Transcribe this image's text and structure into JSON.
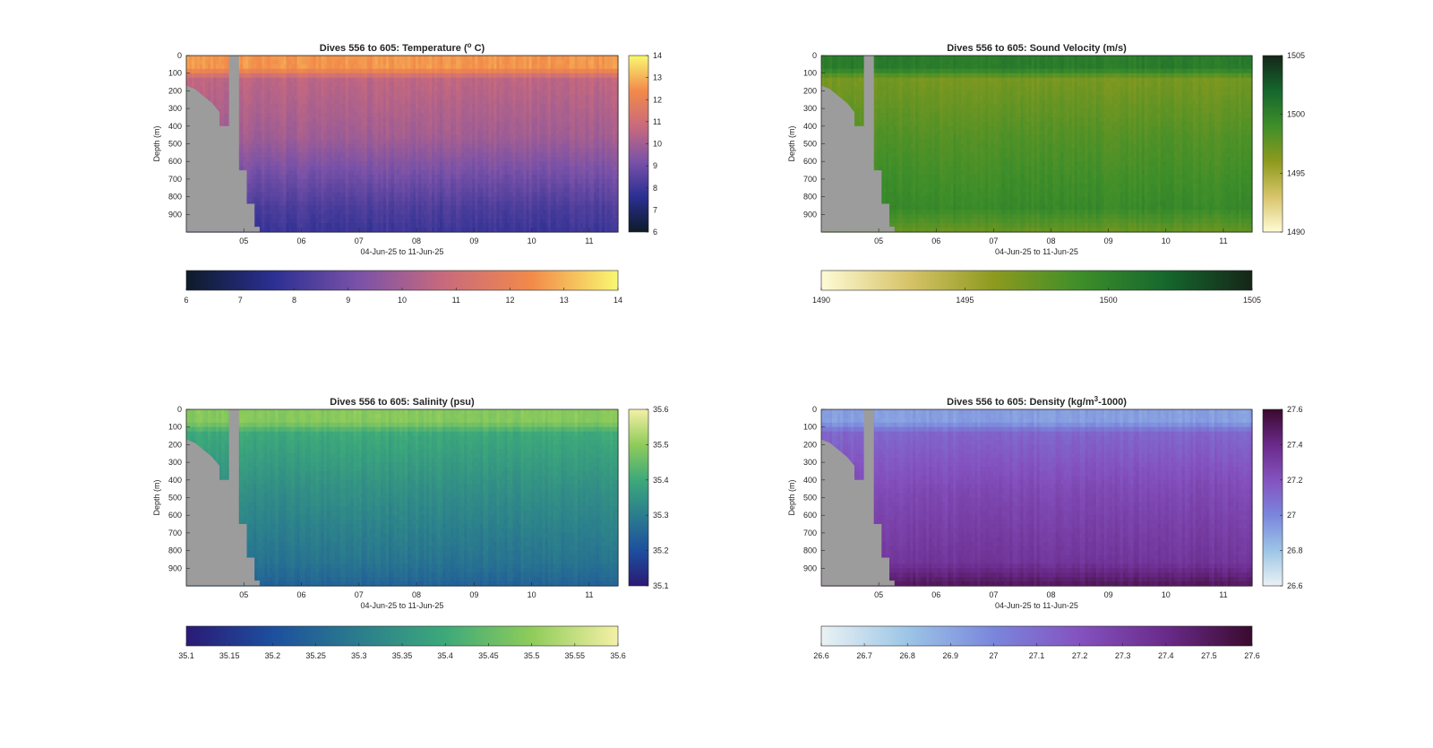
{
  "figure": {
    "background": "#ffffff",
    "land_color": "#9c9c9c"
  },
  "chart_data": [
    {
      "type": "heatmap",
      "title": "Dives 556 to 605: Temperature (",
      "title_sup": "o",
      "title_end": " C)",
      "xlabel": "04-Jun-25 to 11-Jun-25",
      "ylabel": "Depth (m)",
      "x_ticks": [
        "05",
        "06",
        "07",
        "08",
        "09",
        "10",
        "11"
      ],
      "y_ticks": [
        0,
        100,
        200,
        300,
        400,
        500,
        600,
        700,
        800,
        900
      ],
      "ylim": [
        0,
        1000
      ],
      "colorscale": [
        "#0d1b29",
        "#2b2f92",
        "#7a52a8",
        "#c96a7c",
        "#f28a4a",
        "#f9f871"
      ],
      "range": [
        6,
        14
      ],
      "side_colorbar_ticks": [
        6,
        7,
        8,
        9,
        10,
        11,
        12,
        13,
        14
      ],
      "bottom_colorbar_ticks": [
        "6",
        "7",
        "8",
        "9",
        "10",
        "11",
        "12",
        "13",
        "14"
      ],
      "profile": {
        "surface": 12.6,
        "upper": 10.6,
        "mid": 10.0,
        "deep": 8.3,
        "bottom": 7.9
      }
    },
    {
      "type": "heatmap",
      "title": "Dives 556 to 605: Sound Velocity (m/s)",
      "title_sup": "",
      "title_end": "",
      "xlabel": "04-Jun-25 to 11-Jun-25",
      "ylabel": "Depth (m)",
      "x_ticks": [
        "05",
        "06",
        "07",
        "08",
        "09",
        "10",
        "11"
      ],
      "y_ticks": [
        0,
        100,
        200,
        300,
        400,
        500,
        600,
        700,
        800,
        900
      ],
      "ylim": [
        0,
        1000
      ],
      "colorscale": [
        "#fefbd6",
        "#d8c46a",
        "#8d9a1e",
        "#3e8e2a",
        "#15672d",
        "#152618"
      ],
      "range": [
        1490,
        1505
      ],
      "side_colorbar_ticks": [
        1490,
        1495,
        1500,
        1505
      ],
      "bottom_colorbar_ticks": [
        "1490",
        "1495",
        "1500",
        "1505"
      ],
      "profile": {
        "surface": 1500.4,
        "upper": 1496.8,
        "mid": 1498.2,
        "deep": 1499.4,
        "bottom": 1497.2
      }
    },
    {
      "type": "heatmap",
      "title": "Dives 556 to 605: Salinity (psu)",
      "title_sup": "",
      "title_end": "",
      "xlabel": "04-Jun-25 to 11-Jun-25",
      "ylabel": "Depth (m)",
      "x_ticks": [
        "05",
        "06",
        "07",
        "08",
        "09",
        "10",
        "11"
      ],
      "y_ticks": [
        0,
        100,
        200,
        300,
        400,
        500,
        600,
        700,
        800,
        900
      ],
      "ylim": [
        0,
        1000
      ],
      "colorscale": [
        "#2a1a75",
        "#1d4f9e",
        "#2b7d8d",
        "#3da97a",
        "#8fcc5a",
        "#f5f0a6"
      ],
      "range": [
        35.1,
        35.6
      ],
      "side_colorbar_ticks": [
        35.1,
        35.2,
        35.3,
        35.4,
        35.5,
        35.6
      ],
      "bottom_colorbar_ticks": [
        "35.1",
        "35.15",
        "35.2",
        "35.25",
        "35.3",
        "35.35",
        "35.4",
        "35.45",
        "35.5",
        "35.55",
        "35.6"
      ],
      "profile": {
        "surface": 35.49,
        "upper": 35.4,
        "mid": 35.34,
        "deep": 35.28,
        "bottom": 35.24
      }
    },
    {
      "type": "heatmap",
      "title": "Dives 556 to 605: Density (kg/m",
      "title_sup": "3",
      "title_end": "-1000)",
      "xlabel": "04-Jun-25 to 11-Jun-25",
      "ylabel": "Depth (m)",
      "x_ticks": [
        "05",
        "06",
        "07",
        "08",
        "09",
        "10",
        "11"
      ],
      "y_ticks": [
        0,
        100,
        200,
        300,
        400,
        500,
        600,
        700,
        800,
        900
      ],
      "ylim": [
        0,
        1000
      ],
      "colorscale": [
        "#eaf2f4",
        "#9cc5e6",
        "#7a86dc",
        "#8452bf",
        "#6a2a8a",
        "#3a0a2e"
      ],
      "range": [
        26.6,
        27.6
      ],
      "side_colorbar_ticks": [
        26.6,
        26.8,
        27,
        27.2,
        27.4,
        27.6
      ],
      "bottom_colorbar_ticks": [
        "26.6",
        "26.7",
        "26.8",
        "26.9",
        "27",
        "27.1",
        "27.2",
        "27.3",
        "27.4",
        "27.5",
        "27.6"
      ],
      "profile": {
        "surface": 26.92,
        "upper": 27.12,
        "mid": 27.24,
        "deep": 27.34,
        "bottom": 27.52
      }
    }
  ]
}
